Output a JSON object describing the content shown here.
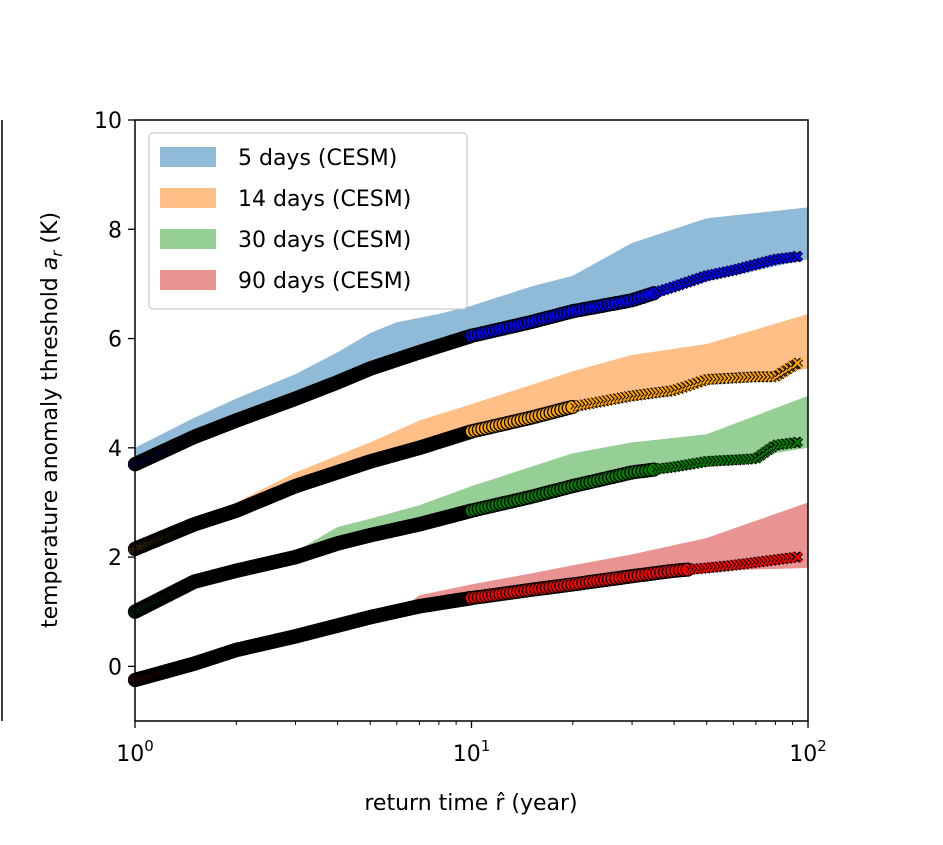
{
  "chart_data": {
    "type": "area",
    "title": "",
    "xlabel": "return time r̂ (year)",
    "ylabel": "temperature anomaly threshold a_r (K)",
    "xscale": "log",
    "xlim": [
      1,
      100
    ],
    "ylim": [
      -1,
      10
    ],
    "x_ticks": [
      {
        "value": 1,
        "base": "10",
        "exp": "0"
      },
      {
        "value": 10,
        "base": "10",
        "exp": "1"
      },
      {
        "value": 100,
        "base": "10",
        "exp": "2"
      }
    ],
    "y_ticks": [
      "0",
      "2",
      "4",
      "6",
      "8",
      "10"
    ],
    "legend_position": "top-left",
    "legend": [
      "5 days (CESM)",
      "14 days (CESM)",
      "30 days (CESM)",
      "90 days (CESM)"
    ],
    "series": [
      {
        "name": "5 days (CESM)",
        "band_color": "#1f77b4",
        "marker_color": "#0000ff",
        "band": {
          "x": [
            1,
            1.5,
            2,
            3,
            4,
            5,
            6,
            8,
            10,
            15,
            20,
            30,
            50,
            100
          ],
          "lower": [
            3.7,
            4.25,
            4.55,
            4.9,
            5.2,
            5.45,
            5.6,
            5.85,
            6.05,
            6.35,
            6.5,
            6.7,
            7.05,
            7.45
          ],
          "upper": [
            4.0,
            4.55,
            4.9,
            5.35,
            5.75,
            6.1,
            6.3,
            6.45,
            6.6,
            6.95,
            7.15,
            7.75,
            8.2,
            8.4
          ]
        },
        "estimate": {
          "x": [
            1,
            1.5,
            2,
            3,
            4,
            5,
            7,
            10,
            15,
            20,
            30,
            40,
            50,
            60,
            80,
            93
          ],
          "y": [
            3.7,
            4.2,
            4.5,
            4.9,
            5.2,
            5.45,
            5.75,
            6.05,
            6.3,
            6.5,
            6.7,
            6.95,
            7.15,
            7.25,
            7.45,
            7.5
          ]
        },
        "crosses_from": 35
      },
      {
        "name": "14 days (CESM)",
        "band_color": "#ff7f0e",
        "marker_color": "#ffa500",
        "band": {
          "x": [
            1,
            1.5,
            2,
            3,
            5,
            7,
            10,
            15,
            20,
            30,
            50,
            100
          ],
          "lower": [
            2.05,
            2.55,
            2.85,
            3.25,
            3.75,
            4.05,
            4.3,
            4.55,
            4.75,
            4.95,
            5.15,
            5.45
          ],
          "upper": [
            2.3,
            2.7,
            3.0,
            3.55,
            4.1,
            4.5,
            4.8,
            5.15,
            5.4,
            5.7,
            5.9,
            6.45
          ]
        },
        "estimate": {
          "x": [
            1,
            1.5,
            2,
            3,
            5,
            7,
            10,
            15,
            20,
            30,
            40,
            50,
            70,
            80,
            93
          ],
          "y": [
            2.15,
            2.6,
            2.85,
            3.3,
            3.75,
            4.0,
            4.3,
            4.55,
            4.75,
            4.95,
            5.05,
            5.25,
            5.3,
            5.3,
            5.55
          ]
        },
        "crosses_from": 20
      },
      {
        "name": "30 days (CESM)",
        "band_color": "#2ca02c",
        "marker_color": "#008000",
        "band": {
          "x": [
            1,
            1.5,
            2,
            3,
            4,
            5,
            7,
            10,
            15,
            20,
            30,
            50,
            100
          ],
          "lower": [
            0.9,
            1.5,
            1.75,
            2.0,
            2.2,
            2.35,
            2.55,
            2.8,
            3.05,
            3.25,
            3.5,
            3.7,
            4.0
          ],
          "upper": [
            1.15,
            1.65,
            1.85,
            2.1,
            2.55,
            2.7,
            2.95,
            3.3,
            3.65,
            3.9,
            4.1,
            4.25,
            4.95
          ]
        },
        "estimate": {
          "x": [
            1,
            1.5,
            2,
            3,
            4,
            5,
            7,
            10,
            15,
            20,
            30,
            40,
            50,
            70,
            80,
            93
          ],
          "y": [
            1.0,
            1.55,
            1.75,
            2.0,
            2.25,
            2.4,
            2.6,
            2.85,
            3.1,
            3.3,
            3.55,
            3.65,
            3.75,
            3.8,
            4.05,
            4.1
          ]
        },
        "crosses_from": 35
      },
      {
        "name": "90 days (CESM)",
        "band_color": "#d62728",
        "marker_color": "#ff0000",
        "band": {
          "x": [
            1,
            1.5,
            2,
            3,
            5,
            6.5,
            7,
            10,
            15,
            20,
            30,
            50,
            100
          ],
          "lower": [
            -0.3,
            0.05,
            0.3,
            0.55,
            0.9,
            1.05,
            1.1,
            1.25,
            1.4,
            1.5,
            1.65,
            1.75,
            1.8
          ],
          "upper": [
            -0.2,
            0.1,
            0.35,
            0.6,
            0.95,
            1.15,
            1.3,
            1.5,
            1.7,
            1.85,
            2.05,
            2.35,
            3.0
          ]
        },
        "estimate": {
          "x": [
            1,
            1.5,
            2,
            3,
            5,
            7,
            10,
            15,
            20,
            30,
            40,
            50,
            60,
            80,
            93
          ],
          "y": [
            -0.25,
            0.05,
            0.3,
            0.55,
            0.9,
            1.1,
            1.25,
            1.4,
            1.5,
            1.65,
            1.75,
            1.8,
            1.85,
            1.95,
            2.0
          ]
        },
        "crosses_from": 45
      }
    ]
  }
}
